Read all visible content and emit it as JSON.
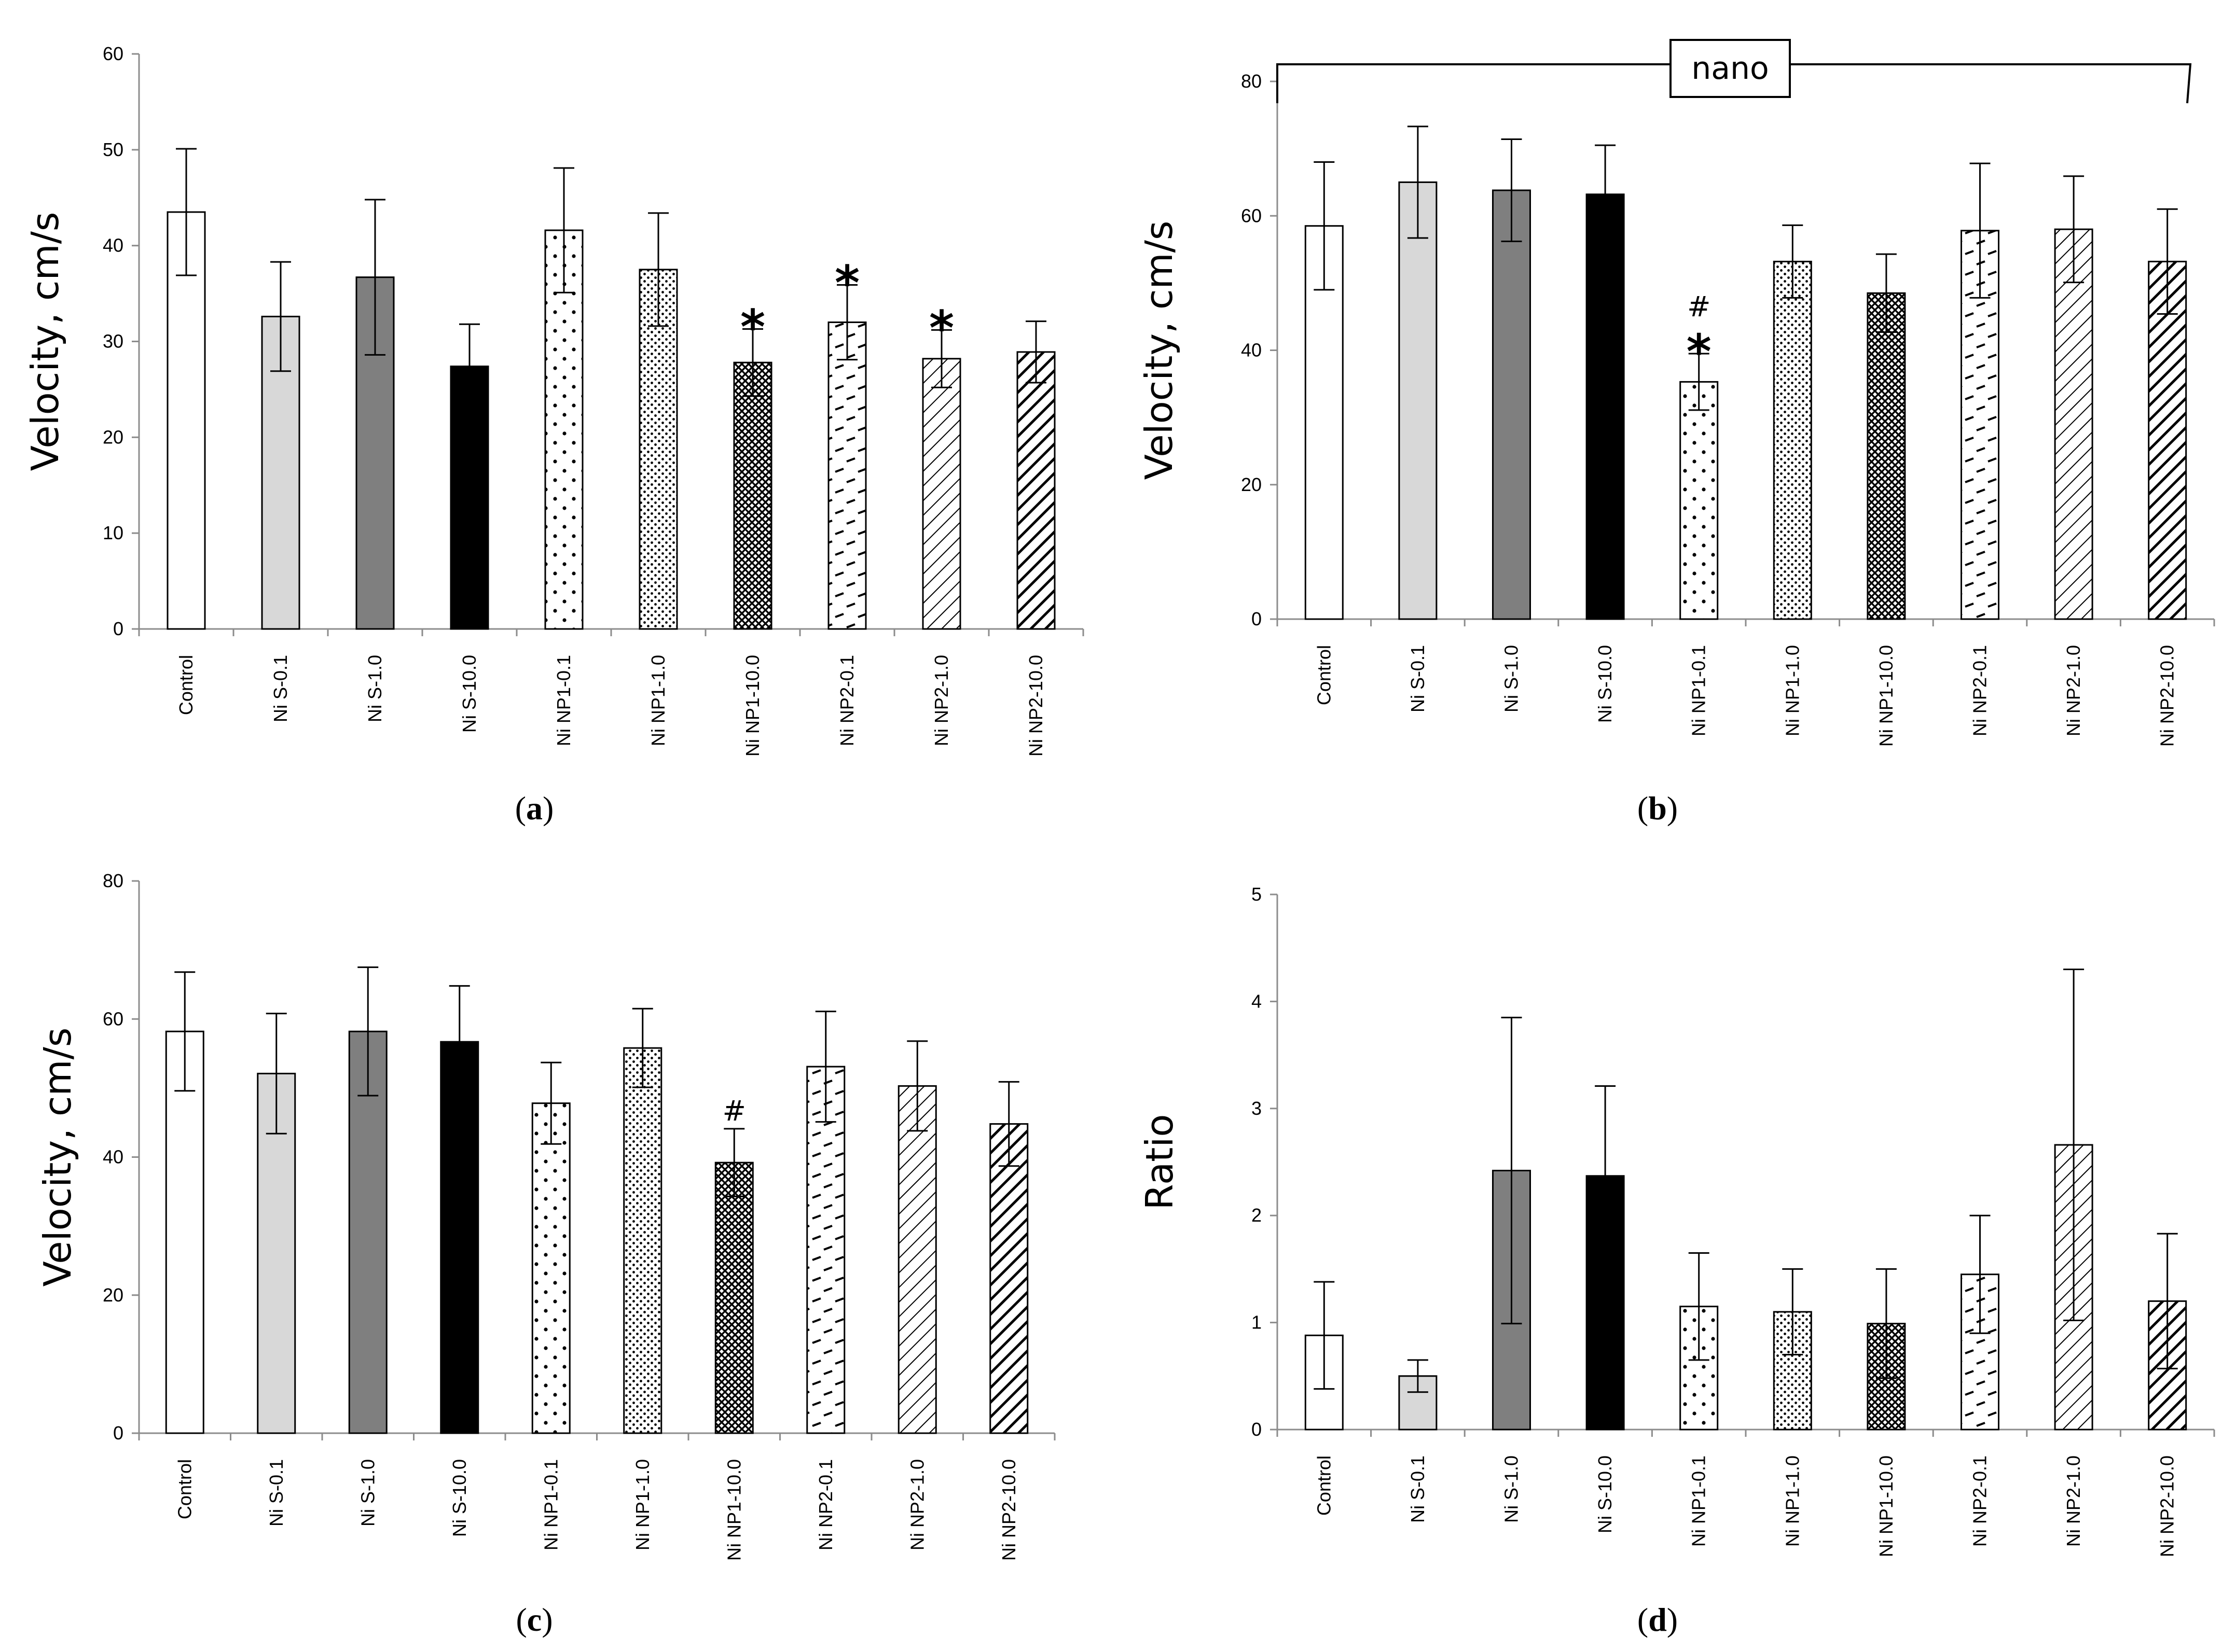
{
  "chart_data": [
    {
      "id": "a",
      "type": "bar",
      "caption": "(a)",
      "caption_letter": "a",
      "ylabel": "Velocity, cm/s",
      "xlabel": "",
      "ylim": [
        0,
        60
      ],
      "yticks": [
        0,
        10,
        20,
        30,
        40,
        50,
        60
      ],
      "categories": [
        "Control",
        "Ni S-0.1",
        "Ni S-1.0",
        "Ni S-10.0",
        "Ni NP1-0.1",
        "Ni NP1-1.0",
        "Ni NP1-10.0",
        "Ni NP2-0.1",
        "Ni NP2-1.0",
        "Ni NP2-10.0"
      ],
      "values": [
        43.5,
        32.6,
        36.7,
        27.4,
        41.6,
        37.5,
        27.8,
        32.0,
        28.2,
        28.9
      ],
      "errors": [
        6.6,
        5.7,
        8.1,
        4.4,
        6.5,
        5.9,
        3.5,
        3.9,
        3.0,
        3.2
      ],
      "annotations": [
        {
          "bar": 6,
          "labels": [
            "*"
          ]
        },
        {
          "bar": 7,
          "labels": [
            "*"
          ]
        },
        {
          "bar": 8,
          "labels": [
            "*"
          ]
        }
      ]
    },
    {
      "id": "b",
      "type": "bar",
      "caption": "(b)",
      "caption_letter": "b",
      "ylabel": "Velocity, cm/s",
      "xlabel": "",
      "ylim": [
        0,
        80
      ],
      "yticks": [
        0,
        20,
        40,
        60,
        80
      ],
      "categories": [
        "Control",
        "Ni S-0.1",
        "Ni S-1.0",
        "Ni S-10.0",
        "Ni NP1-0.1",
        "Ni NP1-1.0",
        "Ni NP1-10.0",
        "Ni NP2-0.1",
        "Ni NP2-1.0",
        "Ni NP2-10.0"
      ],
      "values": [
        58.5,
        65.0,
        63.8,
        63.2,
        35.3,
        53.2,
        48.5,
        57.8,
        58.0,
        53.2
      ],
      "errors": [
        9.5,
        8.3,
        7.6,
        7.3,
        4.2,
        5.4,
        5.8,
        10.0,
        7.9,
        7.8
      ],
      "annotations": [
        {
          "bar": 4,
          "labels": [
            "*",
            "#"
          ]
        }
      ],
      "bracket_label": "nano"
    },
    {
      "id": "c",
      "type": "bar",
      "caption": "(c)",
      "caption_letter": "c",
      "ylabel": "Velocity, cm/s",
      "xlabel": "",
      "ylim": [
        0,
        80
      ],
      "yticks": [
        0,
        20,
        40,
        60,
        80
      ],
      "categories": [
        "Control",
        "Ni S-0.1",
        "Ni S-1.0",
        "Ni S-10.0",
        "Ni NP1-0.1",
        "Ni NP1-1.0",
        "Ni NP1-10.0",
        "Ni NP2-0.1",
        "Ni NP2-1.0",
        "Ni NP2-10.0"
      ],
      "values": [
        58.2,
        52.1,
        58.2,
        56.7,
        47.8,
        55.8,
        39.2,
        53.1,
        50.3,
        44.8
      ],
      "errors": [
        8.6,
        8.7,
        9.3,
        8.1,
        5.9,
        5.7,
        4.9,
        8.0,
        6.5,
        6.1
      ],
      "annotations": [
        {
          "bar": 6,
          "labels": [
            "#"
          ]
        }
      ]
    },
    {
      "id": "d",
      "type": "bar",
      "caption": "(d)",
      "caption_letter": "d",
      "ylabel": "Ratio",
      "xlabel": "",
      "ylim": [
        0,
        5
      ],
      "yticks": [
        0,
        1,
        2,
        3,
        4,
        5
      ],
      "categories": [
        "Control",
        "Ni S-0.1",
        "Ni S-1.0",
        "Ni S-10.0",
        "Ni NP1-0.1",
        "Ni NP1-1.0",
        "Ni NP1-10.0",
        "Ni NP2-0.1",
        "Ni NP2-1.0",
        "Ni NP2-10.0"
      ],
      "values": [
        0.88,
        0.5,
        2.42,
        2.37,
        1.15,
        1.1,
        0.99,
        1.45,
        2.66,
        1.2
      ],
      "errors": [
        0.5,
        0.15,
        1.43,
        0.84,
        0.5,
        0.4,
        0.51,
        0.55,
        1.64,
        0.63
      ],
      "annotations": []
    }
  ],
  "bar_styles": [
    {
      "name": "white",
      "fill": "#ffffff"
    },
    {
      "name": "light-gray",
      "fill": "#d8d8d8"
    },
    {
      "name": "gray",
      "fill": "#7f7f7f"
    },
    {
      "name": "black",
      "fill": "#000000"
    },
    {
      "name": "sparse-dots",
      "fill": "pattern"
    },
    {
      "name": "dense-dots",
      "fill": "pattern"
    },
    {
      "name": "crosshatch",
      "fill": "pattern"
    },
    {
      "name": "dashed-horizontal",
      "fill": "pattern"
    },
    {
      "name": "light-diagonal",
      "fill": "pattern"
    },
    {
      "name": "heavy-diagonal",
      "fill": "pattern"
    }
  ],
  "colors": {
    "axis": "#8c8c8c",
    "bar_outline": "#000000",
    "light_gray": "#d8d8d8",
    "dark_gray": "#7f7f7f",
    "black": "#000000",
    "background": "#ffffff"
  }
}
